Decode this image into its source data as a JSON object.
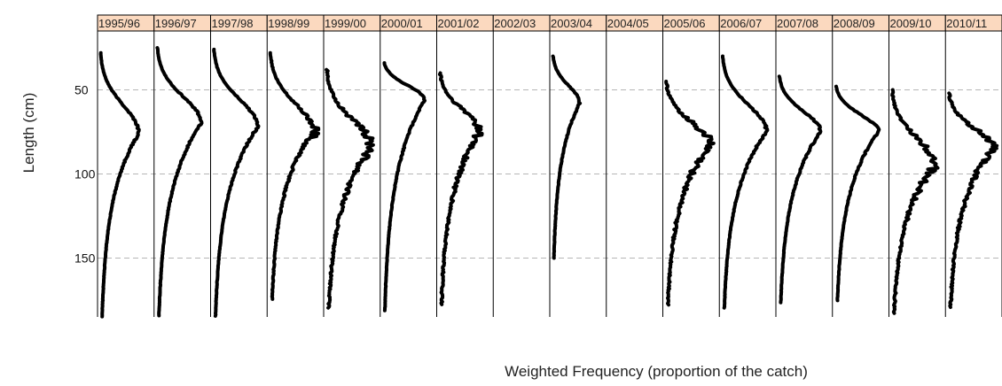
{
  "chart_data": {
    "type": "line",
    "ylabel": "Length (cm)",
    "xlabel": "Weighted Frequency (proportion of the catch)",
    "y_axis": {
      "ticks": [
        50,
        100,
        150
      ],
      "reversed": true,
      "range": [
        15,
        185
      ]
    },
    "grid": "dashed horizontal at 50, 100, 150",
    "strip_color": "#fbd9bf",
    "line_color": "#000000",
    "panels": [
      {
        "season": "1995/96",
        "length_range": [
          28,
          185
        ],
        "peak_length": 76,
        "peak_value": 0.78,
        "shape": "steady"
      },
      {
        "season": "1996/97",
        "length_range": [
          25,
          185
        ],
        "peak_length": 70,
        "peak_value": 0.9,
        "shape": "smooth"
      },
      {
        "season": "1997/98",
        "length_range": [
          26,
          185
        ],
        "peak_length": 72,
        "peak_value": 0.9,
        "shape": "smooth"
      },
      {
        "season": "1998/99",
        "length_range": [
          28,
          175
        ],
        "peak_length": 75,
        "peak_value": 0.88,
        "shape": "spiky"
      },
      {
        "season": "1999/00",
        "length_range": [
          38,
          180
        ],
        "peak_length": 85,
        "peak_value": 0.92,
        "shape": "noisy"
      },
      {
        "season": "2000/01",
        "length_range": [
          34,
          182
        ],
        "peak_length": 56,
        "peak_value": 0.85,
        "shape": "steady"
      },
      {
        "season": "2001/02",
        "length_range": [
          40,
          178
        ],
        "peak_length": 75,
        "peak_value": 0.82,
        "shape": "noisy"
      },
      {
        "season": "2002/03",
        "length_range": null,
        "peak_length": null,
        "peak_value": 0,
        "shape": "none"
      },
      {
        "season": "2003/04",
        "length_range": [
          30,
          150
        ],
        "peak_length": 58,
        "peak_value": 0.55,
        "shape": "steady"
      },
      {
        "season": "2004/05",
        "length_range": null,
        "peak_length": null,
        "peak_value": 0,
        "shape": "none"
      },
      {
        "season": "2005/06",
        "length_range": [
          45,
          178
        ],
        "peak_length": 83,
        "peak_value": 0.9,
        "shape": "noisy"
      },
      {
        "season": "2006/07",
        "length_range": [
          30,
          180
        ],
        "peak_length": 75,
        "peak_value": 0.9,
        "shape": "steady"
      },
      {
        "season": "2007/08",
        "length_range": [
          42,
          177
        ],
        "peak_length": 75,
        "peak_value": 0.85,
        "shape": "steady"
      },
      {
        "season": "2008/09",
        "length_range": [
          48,
          176
        ],
        "peak_length": 75,
        "peak_value": 0.88,
        "shape": "steady"
      },
      {
        "season": "2009/10",
        "length_range": [
          50,
          183
        ],
        "peak_length": 95,
        "peak_value": 0.88,
        "shape": "noisy"
      },
      {
        "season": "2010/11",
        "length_range": [
          52,
          180
        ],
        "peak_length": 85,
        "peak_value": 0.9,
        "shape": "noisy"
      }
    ]
  }
}
